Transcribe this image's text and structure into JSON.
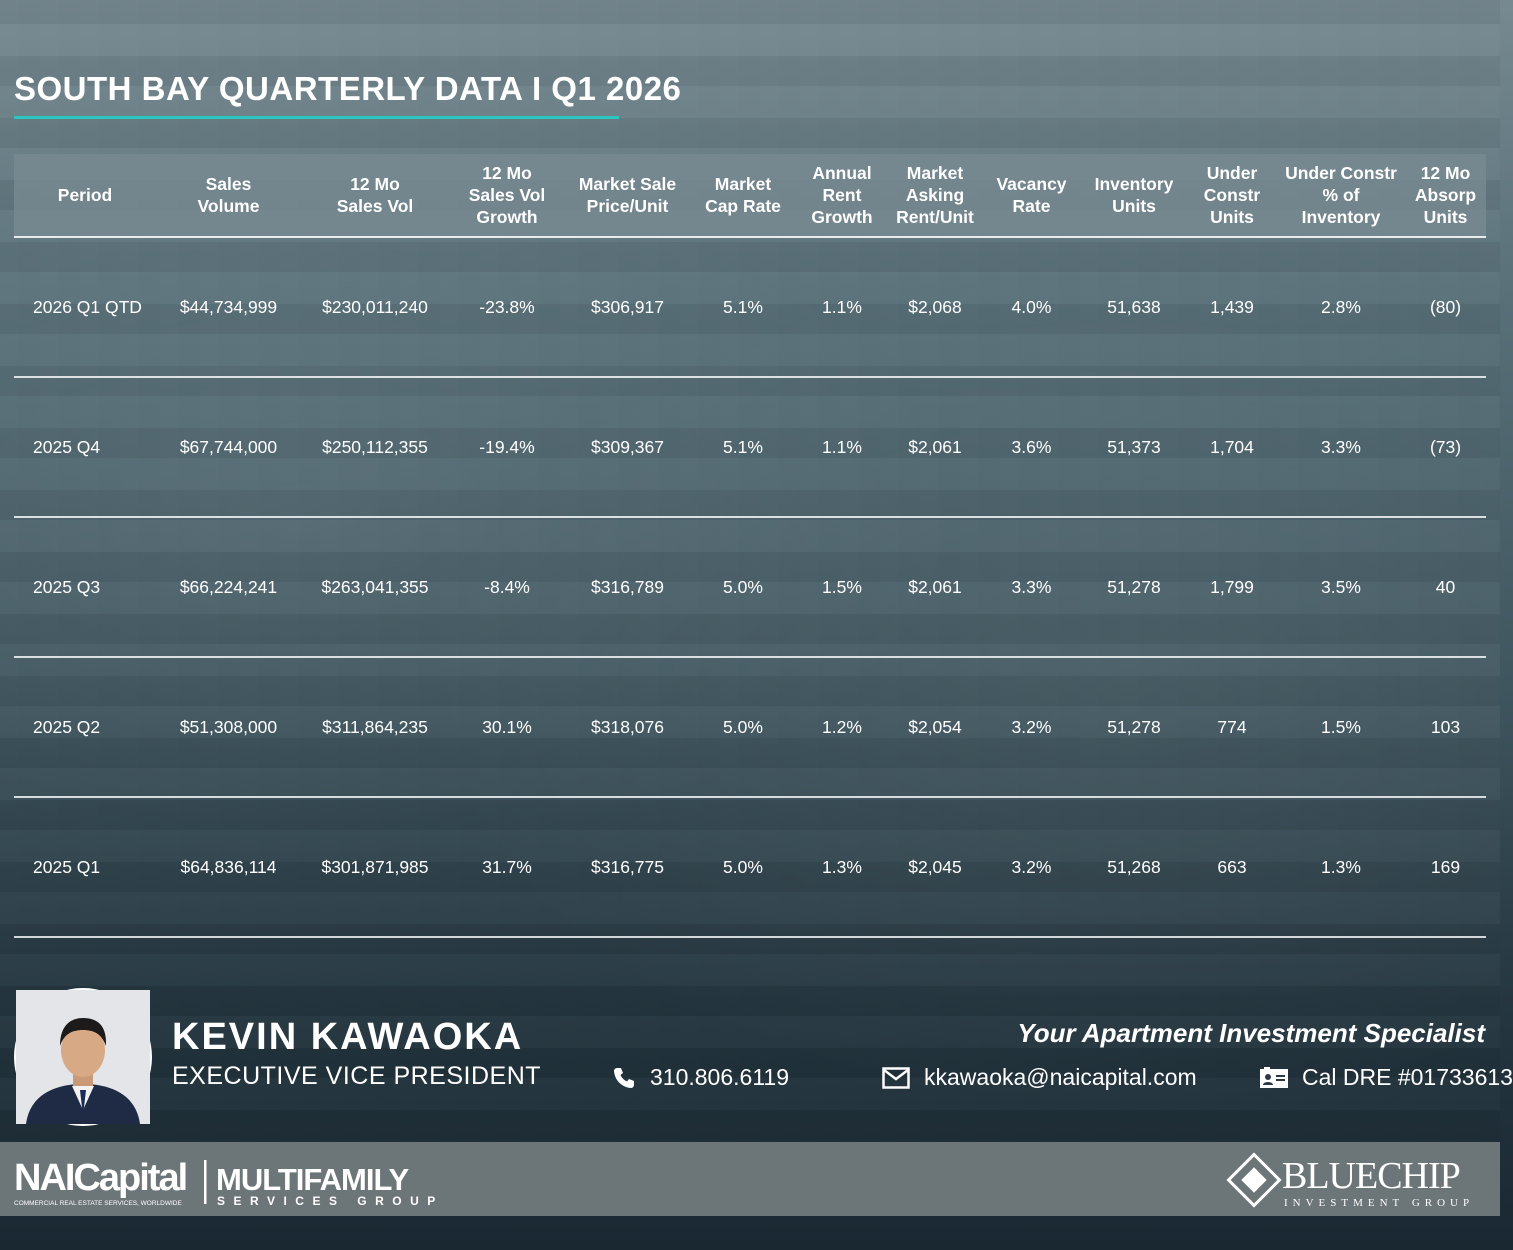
{
  "title": "SOUTH BAY QUARTERLY DATA I Q1 2026",
  "table": {
    "headers": [
      "Period",
      "Sales Volume",
      "12 Mo Sales Vol",
      "12 Mo Sales Vol Growth",
      "Market Sale Price/Unit",
      "Market Cap Rate",
      "Annual Rent Growth",
      "Market Asking Rent/Unit",
      "Vacancy Rate",
      "Inventory Units",
      "Under Constr Units",
      "Under Constr % of Inventory",
      "12 Mo Absorp Units"
    ],
    "rows": [
      [
        "2026 Q1 QTD",
        "$44,734,999",
        "$230,011,240",
        "-23.8%",
        "$306,917",
        "5.1%",
        "1.1%",
        "$2,068",
        "4.0%",
        "51,638",
        "1,439",
        "2.8%",
        "(80)"
      ],
      [
        "2025 Q4",
        "$67,744,000",
        "$250,112,355",
        "-19.4%",
        "$309,367",
        "5.1%",
        "1.1%",
        "$2,061",
        "3.6%",
        "51,373",
        "1,704",
        "3.3%",
        "(73)"
      ],
      [
        "2025 Q3",
        "$66,224,241",
        "$263,041,355",
        "-8.4%",
        "$316,789",
        "5.0%",
        "1.5%",
        "$2,061",
        "3.3%",
        "51,278",
        "1,799",
        "3.5%",
        "40"
      ],
      [
        "2025 Q2",
        "$51,308,000",
        "$311,864,235",
        "30.1%",
        "$318,076",
        "5.0%",
        "1.2%",
        "$2,054",
        "3.2%",
        "51,278",
        "774",
        "1.5%",
        "103"
      ],
      [
        "2025 Q1",
        "$64,836,114",
        "$301,871,985",
        "31.7%",
        "$316,775",
        "5.0%",
        "1.3%",
        "$2,045",
        "3.2%",
        "51,268",
        "663",
        "1.3%",
        "169"
      ]
    ]
  },
  "agent": {
    "name": "KEVIN KAWAOKA",
    "role": "EXECUTIVE VICE PRESIDENT",
    "tagline": "Your Apartment Investment Specialist",
    "phone": "310.806.6119",
    "email": "kkawaoka@naicapital.com",
    "license": "Cal DRE #01733613"
  },
  "logos": {
    "nai": "NAICapital",
    "nai_sub": "COMMERCIAL REAL ESTATE SERVICES, WORLDWIDE",
    "multifamily": "MULTIFAMILY",
    "multifamily_sub": "SERVICES GROUP",
    "bluechip": "BLUECHIP",
    "bluechip_sub": "INVESTMENT GROUP"
  },
  "colors": {
    "accent": "#2cc6c0",
    "bottom_bar": "#6c7578"
  },
  "icons": [
    "phone-icon",
    "mail-icon",
    "id-card-icon"
  ]
}
